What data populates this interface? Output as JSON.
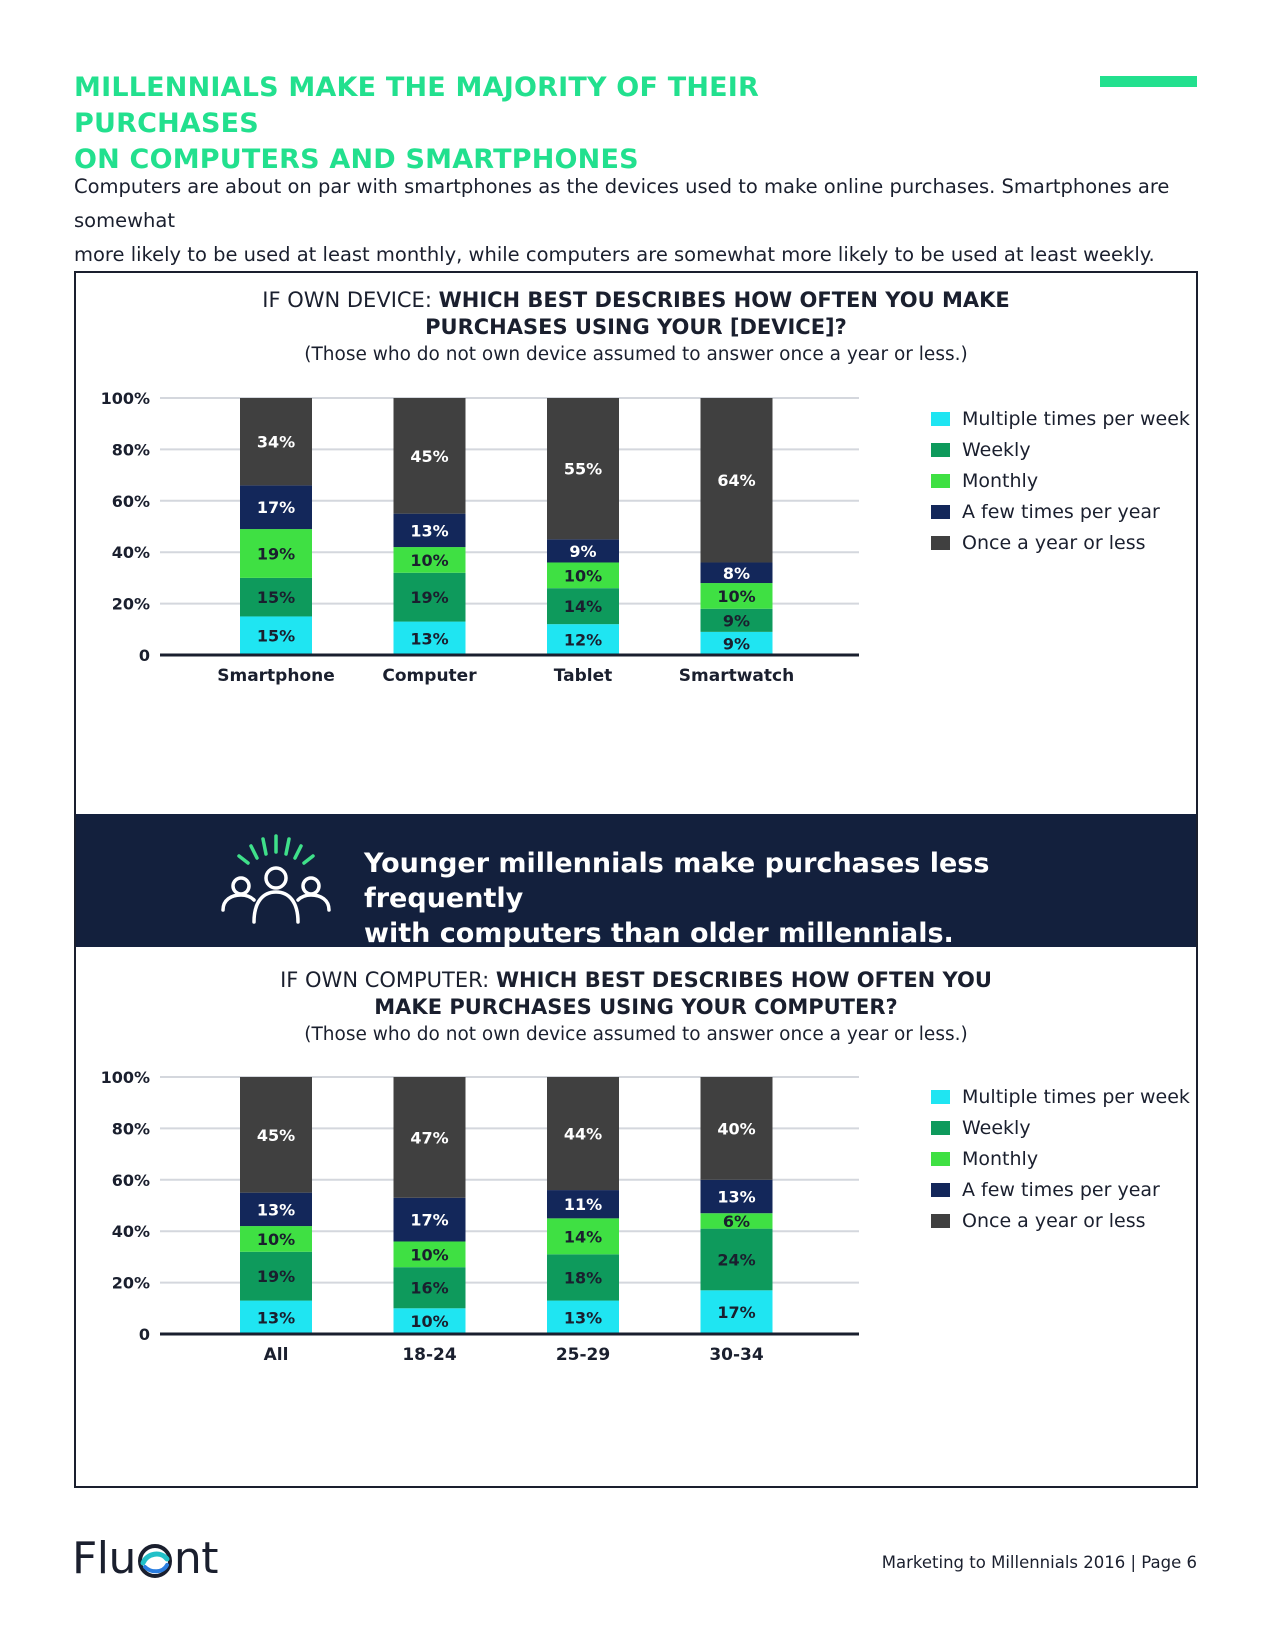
{
  "header": {
    "title_line1": "MILLENNIALS MAKE THE MAJORITY OF THEIR PURCHASES",
    "title_line2": "ON COMPUTERS AND SMARTPHONES",
    "accent_color": "#22e08e"
  },
  "intro": {
    "line1": "Computers are about on par with smartphones as the devices used to make online purchases. Smartphones are somewhat",
    "line2": "more likely to be used at least monthly, while computers are somewhat more likely to be used at least weekly."
  },
  "chart1": {
    "question_prefix": "IF OWN DEVICE: ",
    "question_line1": "WHICH BEST DESCRIBES HOW OFTEN YOU MAKE",
    "question_line2": "PURCHASES USING YOUR [DEVICE]?",
    "note": "(Those who do not own device assumed to answer once a year or less.)"
  },
  "banner": {
    "line1": "Younger millennials make purchases less frequently",
    "line2": "with computers than older millennials.",
    "icon": "group-people-icon",
    "background": "#13203d"
  },
  "chart2": {
    "question_prefix": "IF OWN COMPUTER: ",
    "question_line1": "WHICH BEST DESCRIBES HOW OFTEN YOU",
    "question_line2": "MAKE PURCHASES USING YOUR COMPUTER?",
    "note": "(Those who do not own device assumed to answer once a year or less.)"
  },
  "legend": [
    {
      "label": "Multiple times per week",
      "color": "#1fe5f2"
    },
    {
      "label": "Weekly",
      "color": "#0e9a5c"
    },
    {
      "label": "Monthly",
      "color": "#3fe043"
    },
    {
      "label": "A few times per year",
      "color": "#13275a"
    },
    {
      "label": "Once a year or less",
      "color": "#404040"
    }
  ],
  "chart_data": [
    {
      "type": "bar",
      "stacked": true,
      "title": "IF OWN DEVICE: WHICH BEST DESCRIBES HOW OFTEN YOU MAKE PURCHASES USING YOUR [DEVICE]?",
      "categories": [
        "Smartphone",
        "Computer",
        "Tablet",
        "Smartwatch"
      ],
      "series": [
        {
          "name": "Multiple times per week",
          "values": [
            15,
            13,
            12,
            9
          ]
        },
        {
          "name": "Weekly",
          "values": [
            15,
            19,
            14,
            9
          ]
        },
        {
          "name": "Monthly",
          "values": [
            19,
            10,
            10,
            10
          ]
        },
        {
          "name": "A few times per year",
          "values": [
            17,
            13,
            9,
            8
          ]
        },
        {
          "name": "Once a year or less",
          "values": [
            34,
            45,
            55,
            64
          ]
        }
      ],
      "yticks": [
        "0",
        "20%",
        "40%",
        "60%",
        "80%",
        "100%"
      ],
      "ylim": [
        0,
        100
      ],
      "legend_position": "right"
    },
    {
      "type": "bar",
      "stacked": true,
      "title": "IF OWN COMPUTER: WHICH BEST DESCRIBES HOW OFTEN YOU MAKE PURCHASES USING YOUR COMPUTER?",
      "categories": [
        "All",
        "18-24",
        "25-29",
        "30-34"
      ],
      "series": [
        {
          "name": "Multiple times per week",
          "values": [
            13,
            10,
            13,
            17
          ]
        },
        {
          "name": "Weekly",
          "values": [
            19,
            16,
            18,
            24
          ]
        },
        {
          "name": "Monthly",
          "values": [
            10,
            10,
            14,
            6
          ]
        },
        {
          "name": "A few times per year",
          "values": [
            13,
            17,
            11,
            13
          ]
        },
        {
          "name": "Once a year or less",
          "values": [
            45,
            47,
            44,
            40
          ]
        }
      ],
      "yticks": [
        "0",
        "20%",
        "40%",
        "60%",
        "80%",
        "100%"
      ],
      "ylim": [
        0,
        100
      ],
      "legend_position": "right"
    }
  ],
  "footer": {
    "logo_before": "Flu",
    "logo_after": "nt",
    "logo_text": "Fluent",
    "page_label": "Marketing to Millennials 2016  |  Page 6"
  }
}
